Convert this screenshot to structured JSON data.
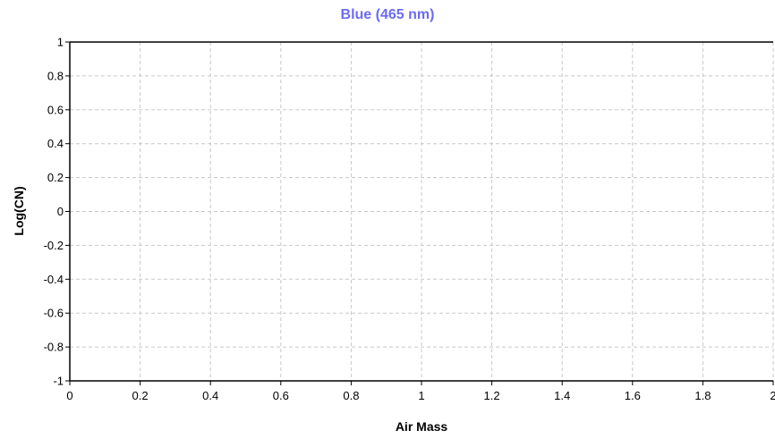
{
  "chart_data": {
    "type": "scatter",
    "title": "Blue (465 nm)",
    "xlabel": "Air Mass",
    "ylabel": "Log(CN)",
    "xlim": [
      0,
      2
    ],
    "ylim": [
      -1,
      1
    ],
    "x_ticks": [
      "0",
      "0.2",
      "0.4",
      "0.6",
      "0.8",
      "1",
      "1.2",
      "1.4",
      "1.6",
      "1.8",
      "2"
    ],
    "y_ticks": [
      "1",
      "0.8",
      "0.6",
      "0.4",
      "0.2",
      "0",
      "-0.2",
      "-0.4",
      "-0.6",
      "-0.8",
      "-1"
    ],
    "grid": true,
    "series": [],
    "colors": {
      "title": "#6b6bf5",
      "grid": "#c8c8c8",
      "axis": "#000000"
    }
  }
}
